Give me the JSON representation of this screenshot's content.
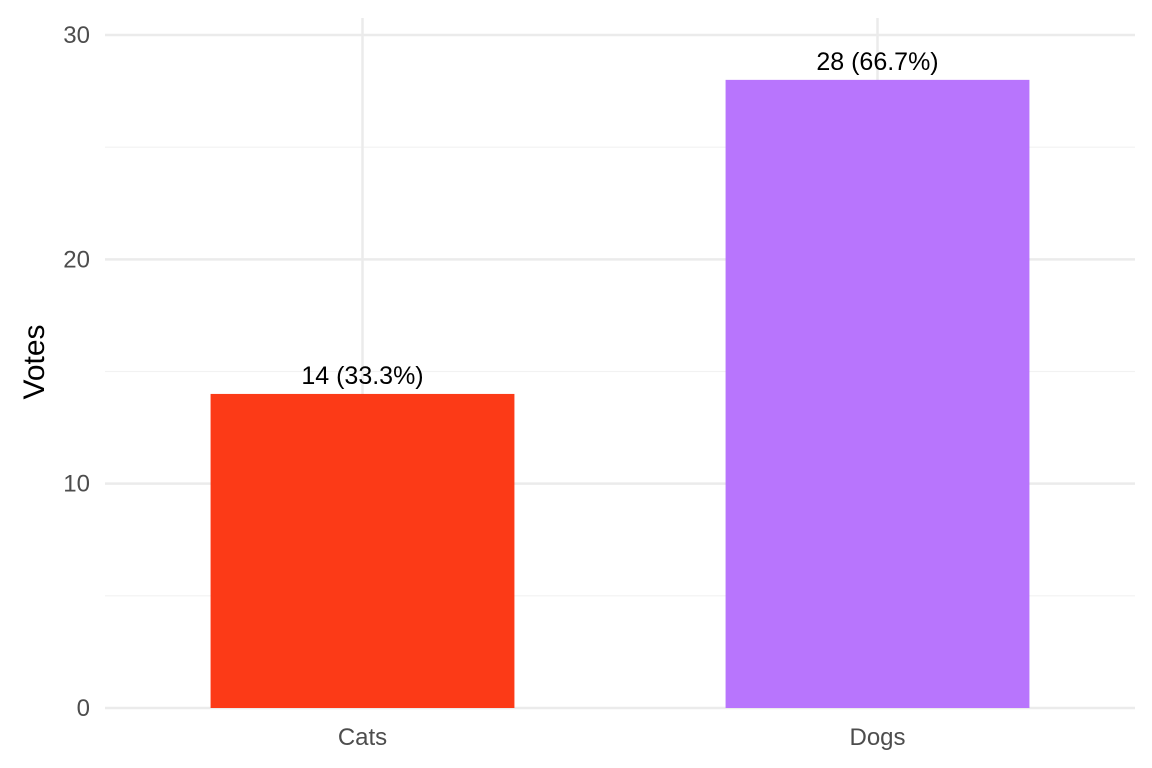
{
  "chart_data": {
    "type": "bar",
    "categories": [
      "Cats",
      "Dogs"
    ],
    "values": [
      14,
      28
    ],
    "data_labels": [
      "14 (33.3%)",
      "28 (66.7%)"
    ],
    "colors": [
      "#fc3a17",
      "#b875fd"
    ],
    "title": "",
    "xlabel": "",
    "ylabel": "Votes",
    "ylim": [
      0,
      30
    ],
    "y_ticks": [
      0,
      10,
      20,
      30
    ],
    "grid": true,
    "legend": "none"
  }
}
